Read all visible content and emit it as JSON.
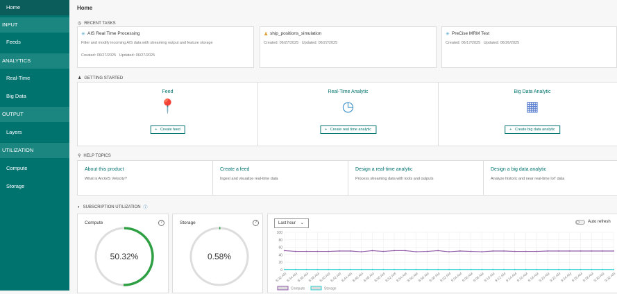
{
  "sidebar": {
    "items": [
      {
        "label": "Home",
        "type": "item",
        "selected": true
      },
      {
        "label": "INPUT",
        "type": "header"
      },
      {
        "label": "Feeds",
        "type": "item"
      },
      {
        "label": "ANALYTICS",
        "type": "header"
      },
      {
        "label": "Real-Time",
        "type": "item"
      },
      {
        "label": "Big Data",
        "type": "item"
      },
      {
        "label": "OUTPUT",
        "type": "header"
      },
      {
        "label": "Layers",
        "type": "item"
      },
      {
        "label": "UTILIZATION",
        "type": "header"
      },
      {
        "label": "Compute",
        "type": "item"
      },
      {
        "label": "Storage",
        "type": "item"
      }
    ]
  },
  "header": {
    "title": "Home"
  },
  "recent": {
    "label": "RECENT TASKS",
    "tasks": [
      {
        "name": "AIS Real Time Processing",
        "desc": "Filter and modify incoming AIS data with streaming output and feature storage",
        "created": "Created: 06/27/2025",
        "updated": "Updated: 06/27/2025"
      },
      {
        "name": "ship_positions_simulation",
        "desc": "",
        "created": "Created: 06/27/2025",
        "updated": "Updated: 06/27/2025"
      },
      {
        "name": "PreCise MRM Test",
        "desc": "",
        "created": "Created: 06/17/2025",
        "updated": "Updated: 06/26/2025"
      }
    ]
  },
  "getting_started": {
    "label": "GETTING STARTED",
    "items": [
      {
        "title": "Feed",
        "button": "Create feed"
      },
      {
        "title": "Real-Time Analytic",
        "button": "Create real time analytic"
      },
      {
        "title": "Big Data Analytic",
        "button": "Create big data analytic"
      }
    ]
  },
  "help": {
    "label": "HELP TOPICS",
    "items": [
      {
        "title": "About this product",
        "desc": "What is ArcGIS Velocity?"
      },
      {
        "title": "Create a feed",
        "desc": "Ingest and visualize real-time data"
      },
      {
        "title": "Design a real-time analytic",
        "desc": "Process streaming data with tools and outputs"
      },
      {
        "title": "Design a big data analytic",
        "desc": "Analyze historic and near real-time IoT data"
      }
    ]
  },
  "utilization": {
    "label": "SUBSCRIPTION UTILIZATION",
    "compute": {
      "label": "Compute",
      "value": "50.32%",
      "fraction": 0.5032,
      "color": "#2ea043"
    },
    "storage": {
      "label": "Storage",
      "value": "0.58%",
      "fraction": 0.0058,
      "color": "#2ea043"
    },
    "range": "Last hour",
    "auto_refresh": "Auto refresh",
    "auto_refresh_on": false
  },
  "chart_data": {
    "type": "line",
    "x": [
      "8:32 AM",
      "8:34 AM",
      "8:36 AM",
      "8:38 AM",
      "8:40 AM",
      "8:42 AM",
      "8:44 AM",
      "8:46 AM",
      "8:48 AM",
      "8:50 AM",
      "8:52 AM",
      "8:54 AM",
      "8:56 AM",
      "8:58 AM",
      "9:00 AM",
      "9:02 AM",
      "9:04 AM",
      "9:06 AM",
      "9:08 AM",
      "9:10 AM",
      "9:12 AM",
      "9:14 AM",
      "9:16 AM",
      "9:18 AM",
      "9:20 AM",
      "9:22 AM",
      "9:24 AM",
      "9:26 AM",
      "9:28 AM",
      "9:30 AM",
      "9:32 AM"
    ],
    "series": [
      {
        "name": "Compute",
        "color": "#8e5aa8",
        "values": [
          51,
          49,
          49,
          49,
          49,
          50,
          50,
          48,
          51,
          49,
          51,
          51,
          48,
          49,
          51,
          48,
          50,
          49,
          48,
          50,
          50,
          49,
          49,
          49,
          50,
          50,
          50,
          50,
          50,
          50,
          50
        ]
      },
      {
        "name": "Storage",
        "color": "#2ccfd0",
        "values": [
          0.6,
          0.6,
          0.6,
          0.6,
          0.6,
          0.6,
          0.6,
          0.6,
          0.6,
          0.6,
          0.6,
          0.6,
          0.6,
          0.6,
          0.6,
          0.6,
          0.6,
          0.6,
          0.6,
          0.6,
          0.6,
          0.6,
          0.6,
          0.6,
          0.6,
          0.6,
          0.6,
          0.6,
          0.6,
          0.6,
          0.6
        ]
      }
    ],
    "yticks": [
      0,
      20,
      40,
      60,
      80,
      100
    ],
    "ylim": [
      0,
      100
    ],
    "grid": true,
    "legend": "bottom-left"
  }
}
